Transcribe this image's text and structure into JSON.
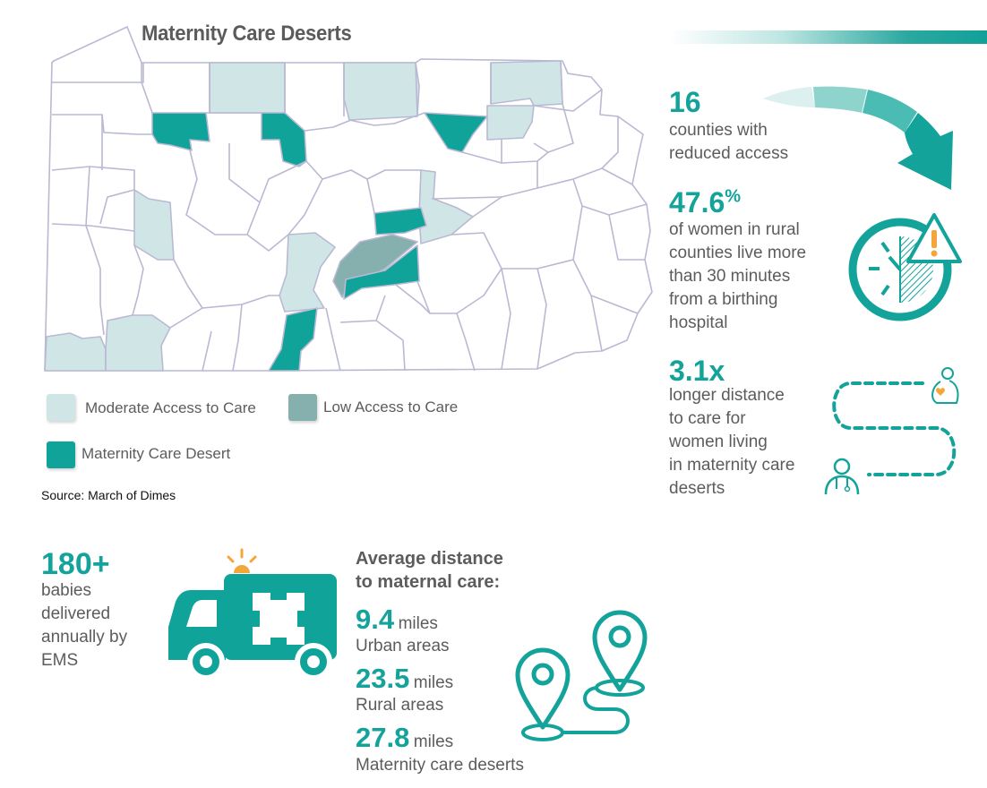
{
  "map": {
    "title": "Maternity Care Deserts",
    "colors": {
      "moderate": "#d0e6e6",
      "low": "#86b0ae",
      "desert": "#0fa39a",
      "other": "#ffffff",
      "border": "#b9b9d3"
    },
    "legend": [
      {
        "key": "moderate",
        "label": "Moderate Access to Care"
      },
      {
        "key": "low",
        "label": "Low Access to Care"
      },
      {
        "key": "desert",
        "label": "Maternity Care Desert"
      }
    ],
    "source": "Source: March of Dimes"
  },
  "stats": {
    "counties": {
      "value": "16",
      "text_line1": "counties with",
      "text_line2": "reduced access"
    },
    "rural_women": {
      "value": "47.6",
      "unit": "%",
      "lines": [
        "of women in rural",
        "counties live more",
        "than 30 minutes",
        "from a birthing",
        "hospital"
      ]
    },
    "distance_ratio": {
      "value": "3.1x",
      "lines": [
        "longer distance",
        "to care for",
        "women living",
        "in maternity care",
        "deserts"
      ]
    },
    "ems": {
      "value": "180+",
      "lines": [
        "babies",
        "delivered",
        "annually by",
        "EMS"
      ]
    }
  },
  "distance": {
    "heading_line1": "Average distance",
    "heading_line2": "to maternal care:",
    "items": [
      {
        "value": "9.4",
        "unit": "miles",
        "label": "Urban areas"
      },
      {
        "value": "23.5",
        "unit": "miles",
        "label": "Rural areas"
      },
      {
        "value": "27.8",
        "unit": "miles",
        "label": "Maternity care deserts"
      }
    ]
  },
  "icons": {
    "arrow": "curved-arrow-icon",
    "clock": "clock-warning-icon",
    "path": "mother-doctor-path-icon",
    "ambulance": "ambulance-icon",
    "route": "map-pin-route-icon"
  }
}
